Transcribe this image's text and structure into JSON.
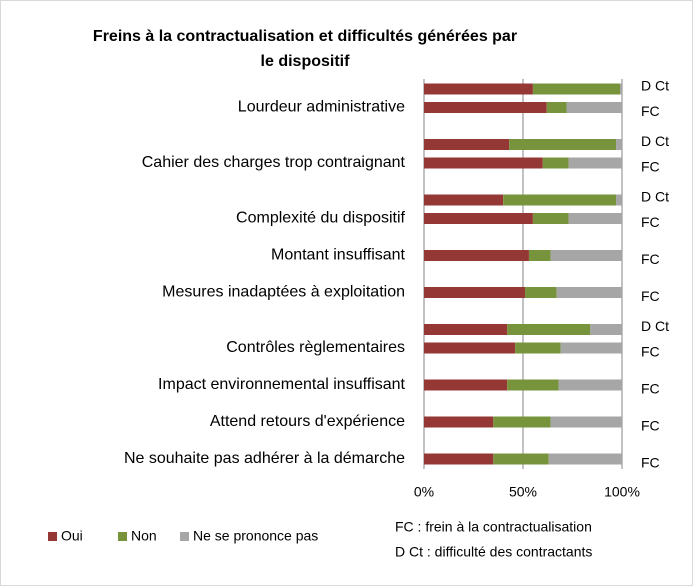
{
  "chart_data": {
    "type": "bar",
    "orientation": "horizontal",
    "stacked": true,
    "title": "Freins à la contractualisation et difficultés générées par le dispositif",
    "series": [
      {
        "name": "Oui",
        "color": "#953735"
      },
      {
        "name": "Non",
        "color": "#77933c"
      },
      {
        "name": "Ne se prononce pas",
        "color": "#a6a6a6"
      }
    ],
    "groups": [
      {
        "name": "Lourdeur administrative",
        "bars": [
          {
            "label": "D Ct",
            "values": [
              55,
              44,
              1
            ]
          },
          {
            "label": "FC",
            "values": [
              62,
              10,
              28
            ]
          }
        ]
      },
      {
        "name": "Cahier des charges trop contraignant",
        "bars": [
          {
            "label": "D Ct",
            "values": [
              43,
              54,
              3
            ]
          },
          {
            "label": "FC",
            "values": [
              60,
              13,
              27
            ]
          }
        ]
      },
      {
        "name": "Complexité du dispositif",
        "bars": [
          {
            "label": "D Ct",
            "values": [
              40,
              57,
              3
            ]
          },
          {
            "label": "FC",
            "values": [
              55,
              18,
              27
            ]
          }
        ]
      },
      {
        "name": "Montant insuffisant",
        "bars": [
          {
            "label": "FC",
            "values": [
              53,
              11,
              36
            ]
          }
        ]
      },
      {
        "name": "Mesures inadaptées à exploitation",
        "bars": [
          {
            "label": "FC",
            "values": [
              51,
              16,
              33
            ]
          }
        ]
      },
      {
        "name": "Contrôles règlementaires",
        "bars": [
          {
            "label": "D Ct",
            "values": [
              42,
              42,
              16
            ]
          },
          {
            "label": "FC",
            "values": [
              46,
              23,
              31
            ]
          }
        ]
      },
      {
        "name": "Impact environnemental insuffisant",
        "bars": [
          {
            "label": "FC",
            "values": [
              42,
              26,
              32
            ]
          }
        ]
      },
      {
        "name": "Attend retours d'expérience",
        "bars": [
          {
            "label": "FC",
            "values": [
              35,
              29,
              36
            ]
          }
        ]
      },
      {
        "name": "Ne souhaite pas adhérer à la démarche",
        "bars": [
          {
            "label": "FC",
            "values": [
              35,
              28,
              37
            ]
          }
        ]
      }
    ],
    "xlim": [
      0,
      100
    ],
    "xticks": [
      {
        "value": 0,
        "label": "0%"
      },
      {
        "value": 50,
        "label": "50%"
      },
      {
        "value": 100,
        "label": "100%"
      }
    ],
    "grid": true,
    "notes": [
      "FC : frein à la contractualisation",
      "D Ct : difficulté des contractants"
    ]
  }
}
